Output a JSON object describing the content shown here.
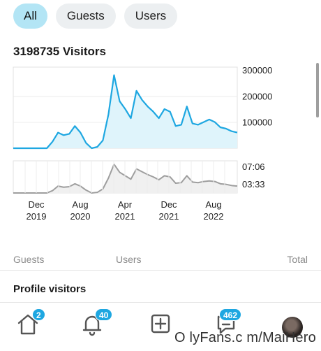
{
  "filters": {
    "items": [
      {
        "label": "All"
      },
      {
        "label": "Guests"
      },
      {
        "label": "Users"
      }
    ]
  },
  "title": "3198735 Visitors",
  "chart_data": [
    {
      "type": "area",
      "series": [
        {
          "values": [
            0,
            0,
            0,
            0,
            0,
            0,
            0,
            25000,
            60000,
            50000,
            55000,
            85000,
            60000,
            20000,
            0,
            5000,
            30000,
            130000,
            280000,
            180000,
            150000,
            115000,
            220000,
            185000,
            160000,
            140000,
            115000,
            150000,
            140000,
            85000,
            90000,
            160000,
            95000,
            90000,
            100000,
            110000,
            100000,
            80000,
            75000,
            65000,
            60000
          ]
        }
      ],
      "y_ticks": [
        "300000",
        "200000",
        "100000"
      ],
      "ylim": [
        0,
        300000
      ],
      "grid": true
    },
    {
      "type": "area",
      "series": [
        {
          "values": [
            0,
            0,
            0,
            0,
            0,
            0,
            0,
            20,
            60,
            50,
            55,
            80,
            60,
            25,
            0,
            5,
            35,
            130,
            250,
            180,
            150,
            120,
            210,
            185,
            160,
            140,
            115,
            150,
            140,
            85,
            90,
            150,
            95,
            90,
            100,
            105,
            100,
            80,
            75,
            65,
            60
          ]
        }
      ],
      "y_ticks": [
        "07:06",
        "03:33"
      ],
      "x_ticks": [
        {
          "month": "Dec",
          "year": "2019"
        },
        {
          "month": "Aug",
          "year": "2020"
        },
        {
          "month": "Apr",
          "year": "2021"
        },
        {
          "month": "Dec",
          "year": "2021"
        },
        {
          "month": "Aug",
          "year": "2022"
        }
      ],
      "grid": true
    }
  ],
  "table": {
    "columns": [
      "Guests",
      "Users",
      "Total"
    ]
  },
  "section_title": "Profile visitors",
  "nav": {
    "home_badge": "2",
    "notifications_badge": "40",
    "messages_badge": "462"
  },
  "watermark": "O lyFans.c m/MaiHero",
  "colors": {
    "accent": "#1ea7e1",
    "area_fill": "#dff4fb",
    "secondary_line": "#9e9e9e"
  }
}
